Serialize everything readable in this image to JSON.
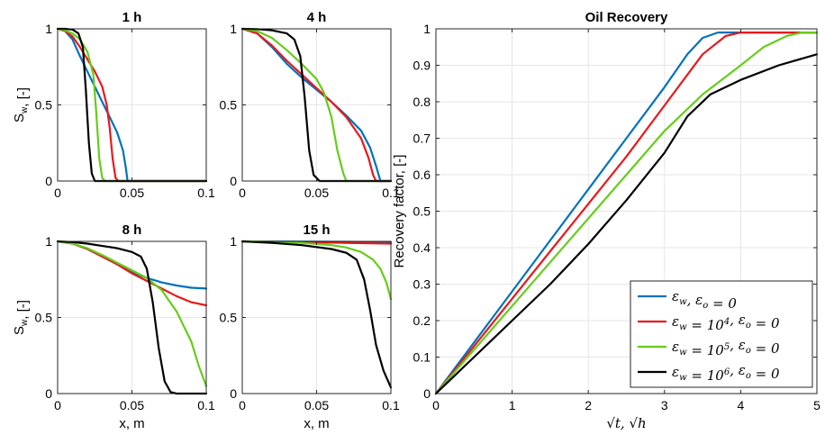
{
  "colors": {
    "series": [
      "#0072BD",
      "#E8191B",
      "#66CC1A",
      "#000000"
    ],
    "grid": "#E6E6E6",
    "axis": "#262626"
  },
  "legend": {
    "entries": [
      {
        "text": "εw, εo = 0"
      },
      {
        "text": "εw = 10^4, εo = 0"
      },
      {
        "text": "εw = 10^5, εo = 0"
      },
      {
        "text": "εw = 10^6, εo = 0"
      }
    ],
    "placement": "bottom-right"
  },
  "chart_data": [
    {
      "type": "line",
      "title": "1 h",
      "xlabel": "",
      "ylabel": "S_w, [-]",
      "xlim": [
        0,
        0.1
      ],
      "ylim": [
        0,
        1
      ],
      "xticks": [
        "0",
        "0.05",
        "0.1"
      ],
      "yticks": [
        "0",
        "0.5",
        "1"
      ],
      "grid": true,
      "series": [
        {
          "color": "#0072BD",
          "points": [
            [
              0,
              1
            ],
            [
              0.005,
              0.985
            ],
            [
              0.01,
              0.93
            ],
            [
              0.015,
              0.82
            ],
            [
              0.02,
              0.72
            ],
            [
              0.025,
              0.62
            ],
            [
              0.03,
              0.52
            ],
            [
              0.035,
              0.42
            ],
            [
              0.04,
              0.32
            ],
            [
              0.044,
              0.2
            ],
            [
              0.046,
              0.08
            ],
            [
              0.047,
              0
            ],
            [
              0.1,
              0
            ]
          ]
        },
        {
          "color": "#E8191B",
          "points": [
            [
              0,
              1
            ],
            [
              0.005,
              0.985
            ],
            [
              0.01,
              0.95
            ],
            [
              0.015,
              0.88
            ],
            [
              0.02,
              0.8
            ],
            [
              0.025,
              0.72
            ],
            [
              0.03,
              0.62
            ],
            [
              0.033,
              0.5
            ],
            [
              0.035,
              0.35
            ],
            [
              0.037,
              0.15
            ],
            [
              0.039,
              0.02
            ],
            [
              0.041,
              0
            ],
            [
              0.1,
              0
            ]
          ]
        },
        {
          "color": "#66CC1A",
          "points": [
            [
              0,
              1
            ],
            [
              0.005,
              0.99
            ],
            [
              0.01,
              0.97
            ],
            [
              0.015,
              0.93
            ],
            [
              0.02,
              0.85
            ],
            [
              0.024,
              0.7
            ],
            [
              0.026,
              0.45
            ],
            [
              0.028,
              0.15
            ],
            [
              0.03,
              0.02
            ],
            [
              0.032,
              0
            ],
            [
              0.1,
              0
            ]
          ]
        },
        {
          "color": "#000000",
          "points": [
            [
              0,
              1
            ],
            [
              0.005,
              1
            ],
            [
              0.01,
              0.995
            ],
            [
              0.014,
              0.97
            ],
            [
              0.017,
              0.88
            ],
            [
              0.019,
              0.6
            ],
            [
              0.021,
              0.25
            ],
            [
              0.023,
              0.05
            ],
            [
              0.025,
              0
            ],
            [
              0.1,
              0
            ]
          ]
        }
      ]
    },
    {
      "type": "line",
      "title": "4 h",
      "xlabel": "",
      "ylabel": "",
      "xlim": [
        0,
        0.1
      ],
      "ylim": [
        0,
        1
      ],
      "xticks": [
        "0",
        "0.05",
        "0.1"
      ],
      "yticks": [
        "0",
        "0.5",
        "1"
      ],
      "grid": true,
      "series": [
        {
          "color": "#0072BD",
          "points": [
            [
              0,
              1
            ],
            [
              0.01,
              0.97
            ],
            [
              0.02,
              0.88
            ],
            [
              0.03,
              0.77
            ],
            [
              0.04,
              0.68
            ],
            [
              0.05,
              0.6
            ],
            [
              0.06,
              0.52
            ],
            [
              0.07,
              0.43
            ],
            [
              0.08,
              0.33
            ],
            [
              0.086,
              0.22
            ],
            [
              0.09,
              0.1
            ],
            [
              0.093,
              0
            ],
            [
              0.1,
              0
            ]
          ]
        },
        {
          "color": "#E8191B",
          "points": [
            [
              0,
              1
            ],
            [
              0.01,
              0.97
            ],
            [
              0.02,
              0.89
            ],
            [
              0.03,
              0.79
            ],
            [
              0.04,
              0.7
            ],
            [
              0.05,
              0.61
            ],
            [
              0.06,
              0.52
            ],
            [
              0.07,
              0.42
            ],
            [
              0.08,
              0.28
            ],
            [
              0.085,
              0.15
            ],
            [
              0.088,
              0.04
            ],
            [
              0.09,
              0
            ],
            [
              0.1,
              0
            ]
          ]
        },
        {
          "color": "#66CC1A",
          "points": [
            [
              0,
              1
            ],
            [
              0.01,
              0.985
            ],
            [
              0.02,
              0.94
            ],
            [
              0.03,
              0.86
            ],
            [
              0.04,
              0.77
            ],
            [
              0.05,
              0.67
            ],
            [
              0.055,
              0.58
            ],
            [
              0.06,
              0.42
            ],
            [
              0.064,
              0.2
            ],
            [
              0.068,
              0.05
            ],
            [
              0.07,
              0
            ],
            [
              0.1,
              0
            ]
          ]
        },
        {
          "color": "#000000",
          "points": [
            [
              0,
              1
            ],
            [
              0.01,
              0.998
            ],
            [
              0.02,
              0.99
            ],
            [
              0.03,
              0.97
            ],
            [
              0.035,
              0.93
            ],
            [
              0.039,
              0.82
            ],
            [
              0.042,
              0.55
            ],
            [
              0.045,
              0.2
            ],
            [
              0.048,
              0.04
            ],
            [
              0.052,
              0
            ],
            [
              0.1,
              0
            ]
          ]
        }
      ]
    },
    {
      "type": "line",
      "title": "8 h",
      "xlabel": "x, m",
      "ylabel": "S_w, [-]",
      "xlim": [
        0,
        0.1
      ],
      "ylim": [
        0,
        1
      ],
      "xticks": [
        "0",
        "0.05",
        "0.1"
      ],
      "yticks": [
        "0",
        "0.5",
        "1"
      ],
      "grid": true,
      "series": [
        {
          "color": "#0072BD",
          "points": [
            [
              0,
              1
            ],
            [
              0.01,
              0.985
            ],
            [
              0.02,
              0.95
            ],
            [
              0.03,
              0.9
            ],
            [
              0.04,
              0.85
            ],
            [
              0.05,
              0.8
            ],
            [
              0.06,
              0.76
            ],
            [
              0.07,
              0.73
            ],
            [
              0.08,
              0.71
            ],
            [
              0.09,
              0.695
            ],
            [
              0.1,
              0.69
            ]
          ]
        },
        {
          "color": "#E8191B",
          "points": [
            [
              0,
              1
            ],
            [
              0.01,
              0.985
            ],
            [
              0.02,
              0.95
            ],
            [
              0.03,
              0.9
            ],
            [
              0.04,
              0.85
            ],
            [
              0.05,
              0.79
            ],
            [
              0.06,
              0.74
            ],
            [
              0.07,
              0.69
            ],
            [
              0.08,
              0.64
            ],
            [
              0.09,
              0.6
            ],
            [
              0.1,
              0.58
            ]
          ]
        },
        {
          "color": "#66CC1A",
          "points": [
            [
              0,
              1
            ],
            [
              0.01,
              0.985
            ],
            [
              0.02,
              0.955
            ],
            [
              0.03,
              0.91
            ],
            [
              0.04,
              0.86
            ],
            [
              0.05,
              0.81
            ],
            [
              0.06,
              0.76
            ],
            [
              0.07,
              0.68
            ],
            [
              0.08,
              0.54
            ],
            [
              0.09,
              0.34
            ],
            [
              0.095,
              0.18
            ],
            [
              0.1,
              0.05
            ]
          ]
        },
        {
          "color": "#000000",
          "points": [
            [
              0,
              1
            ],
            [
              0.01,
              0.995
            ],
            [
              0.02,
              0.985
            ],
            [
              0.03,
              0.97
            ],
            [
              0.04,
              0.955
            ],
            [
              0.05,
              0.93
            ],
            [
              0.056,
              0.9
            ],
            [
              0.06,
              0.82
            ],
            [
              0.064,
              0.6
            ],
            [
              0.068,
              0.3
            ],
            [
              0.072,
              0.08
            ],
            [
              0.076,
              0.01
            ],
            [
              0.08,
              0
            ],
            [
              0.1,
              0
            ]
          ]
        }
      ]
    },
    {
      "type": "line",
      "title": "15 h",
      "xlabel": "x, m",
      "ylabel": "",
      "xlim": [
        0,
        0.1
      ],
      "ylim": [
        0,
        1
      ],
      "xticks": [
        "0",
        "0.05",
        "0.1"
      ],
      "yticks": [
        "0",
        "0.5",
        "1"
      ],
      "grid": true,
      "series": [
        {
          "color": "#0072BD",
          "points": [
            [
              0,
              1
            ],
            [
              0.05,
              0.998
            ],
            [
              0.1,
              0.995
            ]
          ]
        },
        {
          "color": "#E8191B",
          "points": [
            [
              0,
              1
            ],
            [
              0.05,
              0.993
            ],
            [
              0.1,
              0.985
            ]
          ]
        },
        {
          "color": "#66CC1A",
          "points": [
            [
              0,
              1
            ],
            [
              0.02,
              0.998
            ],
            [
              0.04,
              0.99
            ],
            [
              0.06,
              0.975
            ],
            [
              0.07,
              0.96
            ],
            [
              0.08,
              0.93
            ],
            [
              0.088,
              0.88
            ],
            [
              0.093,
              0.82
            ],
            [
              0.097,
              0.73
            ],
            [
              0.1,
              0.62
            ]
          ]
        },
        {
          "color": "#000000",
          "points": [
            [
              0,
              1
            ],
            [
              0.02,
              0.99
            ],
            [
              0.04,
              0.975
            ],
            [
              0.06,
              0.95
            ],
            [
              0.07,
              0.925
            ],
            [
              0.077,
              0.88
            ],
            [
              0.082,
              0.75
            ],
            [
              0.086,
              0.55
            ],
            [
              0.09,
              0.32
            ],
            [
              0.095,
              0.15
            ],
            [
              0.1,
              0.04
            ]
          ]
        }
      ]
    },
    {
      "type": "line",
      "title": "Oil Recovery",
      "xlabel": "√t, √h",
      "ylabel": "Recovery factor, [-]",
      "xlim": [
        0,
        5
      ],
      "ylim": [
        0,
        1
      ],
      "xticks": [
        "0",
        "1",
        "2",
        "3",
        "4",
        "5"
      ],
      "yticks": [
        "0",
        "0.1",
        "0.2",
        "0.3",
        "0.4",
        "0.5",
        "0.6",
        "0.7",
        "0.8",
        "0.9",
        "1"
      ],
      "grid": true,
      "series": [
        {
          "name": "εw, εo = 0",
          "color": "#0072BD",
          "points": [
            [
              0,
              0
            ],
            [
              0.5,
              0.14
            ],
            [
              1,
              0.28
            ],
            [
              1.5,
              0.42
            ],
            [
              2,
              0.56
            ],
            [
              2.5,
              0.7
            ],
            [
              3,
              0.84
            ],
            [
              3.3,
              0.93
            ],
            [
              3.5,
              0.975
            ],
            [
              3.7,
              0.99
            ],
            [
              5,
              0.99
            ]
          ]
        },
        {
          "name": "εw = 10^4, εo = 0",
          "color": "#E8191B",
          "points": [
            [
              0,
              0
            ],
            [
              0.5,
              0.13
            ],
            [
              1,
              0.26
            ],
            [
              1.5,
              0.39
            ],
            [
              2,
              0.52
            ],
            [
              2.5,
              0.65
            ],
            [
              3,
              0.79
            ],
            [
              3.5,
              0.93
            ],
            [
              3.8,
              0.98
            ],
            [
              4,
              0.99
            ],
            [
              5,
              0.99
            ]
          ]
        },
        {
          "name": "εw = 10^5, εo = 0",
          "color": "#66CC1A",
          "points": [
            [
              0,
              0
            ],
            [
              0.5,
              0.12
            ],
            [
              1,
              0.24
            ],
            [
              1.5,
              0.36
            ],
            [
              2,
              0.48
            ],
            [
              2.5,
              0.6
            ],
            [
              3,
              0.72
            ],
            [
              3.5,
              0.82
            ],
            [
              4,
              0.9
            ],
            [
              4.3,
              0.95
            ],
            [
              4.6,
              0.98
            ],
            [
              4.8,
              0.99
            ],
            [
              5,
              0.99
            ]
          ]
        },
        {
          "name": "εw = 10^6, εo = 0",
          "color": "#000000",
          "points": [
            [
              0,
              0
            ],
            [
              0.5,
              0.1
            ],
            [
              1,
              0.2
            ],
            [
              1.5,
              0.3
            ],
            [
              2,
              0.41
            ],
            [
              2.5,
              0.53
            ],
            [
              3,
              0.66
            ],
            [
              3.3,
              0.76
            ],
            [
              3.6,
              0.82
            ],
            [
              4,
              0.86
            ],
            [
              4.5,
              0.9
            ],
            [
              5,
              0.93
            ]
          ]
        }
      ]
    }
  ]
}
